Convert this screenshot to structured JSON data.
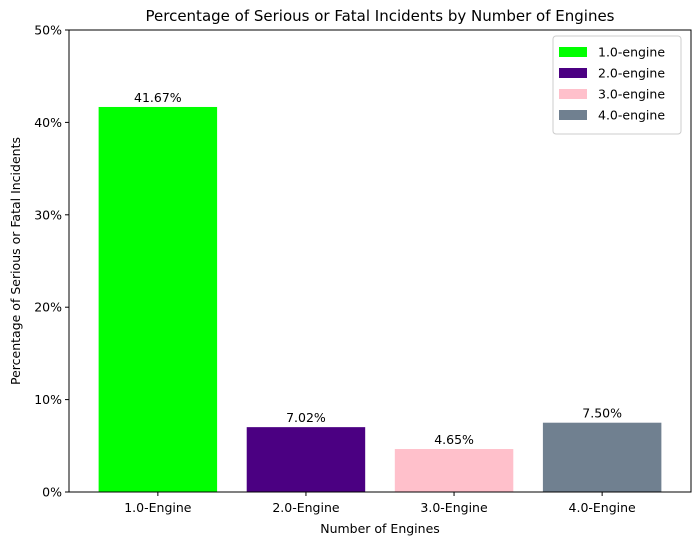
{
  "chart_data": {
    "type": "bar",
    "title": "Percentage of Serious or Fatal Incidents by Number of Engines",
    "xlabel": "Number of Engines",
    "ylabel": "Percentage of Serious or Fatal Incidents",
    "categories": [
      "1.0-Engine",
      "2.0-Engine",
      "3.0-Engine",
      "4.0-Engine"
    ],
    "values": [
      41.67,
      7.02,
      4.65,
      7.5
    ],
    "value_labels": [
      "41.67%",
      "7.02%",
      "4.65%",
      "7.50%"
    ],
    "colors": [
      "#00ff00",
      "#4b0082",
      "#ffc0cb",
      "#708090"
    ],
    "ylim": [
      0,
      50
    ],
    "yticks": [
      0,
      10,
      20,
      30,
      40,
      50
    ],
    "ytick_labels": [
      "0%",
      "10%",
      "20%",
      "30%",
      "40%",
      "50%"
    ],
    "grid": false,
    "legend": {
      "placement": "top-right",
      "entries": [
        "1.0-engine",
        "2.0-engine",
        "3.0-engine",
        "4.0-engine"
      ]
    }
  }
}
